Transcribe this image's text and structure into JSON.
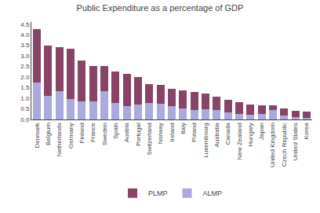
{
  "chart_data": {
    "type": "bar",
    "title": "Public Expenditure as a percentage of GDP",
    "categories": [
      "Denmark",
      "Belgium",
      "Netherlands",
      "Germany",
      "Finland",
      "France",
      "Sweden",
      "Spain",
      "Austria",
      "Portugal",
      "Switzerland",
      "Norway",
      "Ireland",
      "Italy",
      "Poland",
      "Luxembourg",
      "Australia",
      "Canada",
      "New Zealand",
      "Hungary",
      "Japan",
      "United Kingdom",
      "Czech Republic",
      "United States",
      "Korea"
    ],
    "series": [
      {
        "name": "ALMP",
        "color": "#aaaadd",
        "values": [
          1.75,
          1.1,
          1.35,
          0.97,
          0.87,
          0.87,
          1.32,
          0.77,
          0.62,
          0.7,
          0.77,
          0.73,
          0.62,
          0.53,
          0.45,
          0.5,
          0.45,
          0.32,
          0.27,
          0.22,
          0.25,
          0.45,
          0.18,
          0.13,
          0.06
        ]
      },
      {
        "name": "PLMP",
        "color": "#884466",
        "values": [
          2.52,
          2.4,
          2.05,
          2.38,
          1.9,
          1.65,
          1.2,
          1.48,
          1.55,
          1.3,
          0.9,
          0.9,
          0.83,
          0.83,
          0.85,
          0.72,
          0.63,
          0.62,
          0.55,
          0.47,
          0.43,
          0.22,
          0.33,
          0.27,
          0.3
        ]
      }
    ],
    "stacked": true,
    "ylim": [
      0,
      4.6
    ],
    "yticks": [
      {
        "value": 0,
        "label": "0.0"
      },
      0.5,
      {
        "value": 1,
        "label": "1.0"
      },
      1.5,
      {
        "value": 2,
        "label": "2.0"
      },
      2.5,
      {
        "value": 3,
        "label": "3.0"
      },
      3.5,
      {
        "value": 4,
        "label": "4.0"
      },
      4.5
    ],
    "grid": false,
    "legend": "bottom"
  }
}
